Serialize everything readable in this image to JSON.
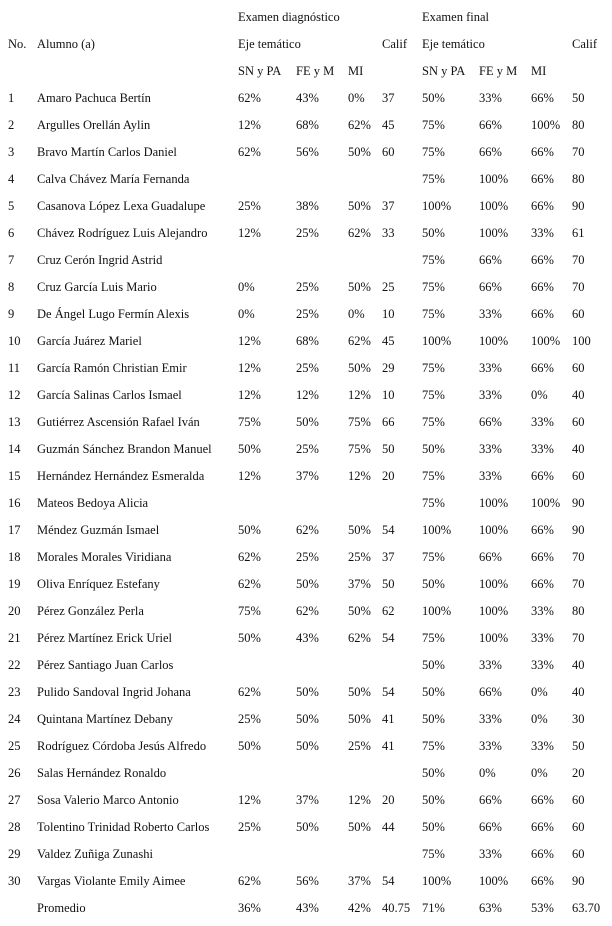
{
  "header": {
    "exam_diag": "Examen diagnóstico",
    "exam_final": "Examen final",
    "no": "No.",
    "alumno": "Alumno (a)",
    "eje_diag": "Eje temático",
    "calif_diag": "Calif",
    "eje_final": "Eje temático",
    "calif_final": "Calif",
    "sub": [
      "SN y PA",
      "FE y M",
      "MI"
    ]
  },
  "rows": [
    [
      "1",
      "Amaro Pachuca Bertín",
      "62%",
      "43%",
      "0%",
      "37",
      "50%",
      "33%",
      "66%",
      "50"
    ],
    [
      "2",
      "Argulles Orellán Aylin",
      "12%",
      "68%",
      "62%",
      "45",
      "75%",
      "66%",
      "100%",
      "80"
    ],
    [
      "3",
      "Bravo Martín Carlos Daniel",
      "62%",
      "56%",
      "50%",
      "60",
      "75%",
      "66%",
      "66%",
      "70"
    ],
    [
      "4",
      "Calva Chávez María Fernanda",
      "",
      "",
      "",
      "",
      "75%",
      "100%",
      "66%",
      "80"
    ],
    [
      "5",
      "Casanova López Lexa Guadalupe",
      "25%",
      "38%",
      "50%",
      "37",
      "100%",
      "100%",
      "66%",
      "90"
    ],
    [
      "6",
      "Chávez Rodríguez Luis Alejandro",
      "12%",
      "25%",
      "62%",
      "33",
      "50%",
      "100%",
      "33%",
      "61"
    ],
    [
      "7",
      "Cruz Cerón Ingrid Astrid",
      "",
      "",
      "",
      "",
      "75%",
      "66%",
      "66%",
      "70"
    ],
    [
      "8",
      "Cruz García Luis Mario",
      "0%",
      "25%",
      "50%",
      "25",
      "75%",
      "66%",
      "66%",
      "70"
    ],
    [
      "9",
      "De Ángel Lugo Fermín Alexis",
      "0%",
      "25%",
      "0%",
      "10",
      "75%",
      "33%",
      "66%",
      "60"
    ],
    [
      "10",
      "García Juárez Mariel",
      "12%",
      "68%",
      "62%",
      "45",
      "100%",
      "100%",
      "100%",
      "100"
    ],
    [
      "11",
      "García Ramón Christian Emir",
      "12%",
      "25%",
      "50%",
      "29",
      "75%",
      "33%",
      "66%",
      "60"
    ],
    [
      "12",
      "García Salinas Carlos Ismael",
      "12%",
      "12%",
      "12%",
      "10",
      "75%",
      "33%",
      "0%",
      "40"
    ],
    [
      "13",
      "Gutiérrez Ascensión Rafael Iván",
      "75%",
      "50%",
      "75%",
      "66",
      "75%",
      "66%",
      "33%",
      "60"
    ],
    [
      "14",
      "Guzmán Sánchez Brandon Manuel",
      "50%",
      "25%",
      "75%",
      "50",
      "50%",
      "33%",
      "33%",
      "40"
    ],
    [
      "15",
      "Hernández Hernández Esmeralda",
      "12%",
      "37%",
      "12%",
      "20",
      "75%",
      "33%",
      "66%",
      "60"
    ],
    [
      "16",
      "Mateos Bedoya Alicia",
      "",
      "",
      "",
      "",
      "75%",
      "100%",
      "100%",
      "90"
    ],
    [
      "17",
      "Méndez Guzmán Ismael",
      "50%",
      "62%",
      "50%",
      "54",
      "100%",
      "100%",
      "66%",
      "90"
    ],
    [
      "18",
      "Morales Morales Viridiana",
      "62%",
      "25%",
      "25%",
      "37",
      "75%",
      "66%",
      "66%",
      "70"
    ],
    [
      "19",
      "Oliva Enríquez Estefany",
      "62%",
      "50%",
      "37%",
      "50",
      "50%",
      "100%",
      "66%",
      "70"
    ],
    [
      "20",
      "Pérez González Perla",
      "75%",
      "62%",
      "50%",
      "62",
      "100%",
      "100%",
      "33%",
      "80"
    ],
    [
      "21",
      "Pérez Martínez Erick Uriel",
      "50%",
      "43%",
      "62%",
      "54",
      "75%",
      "100%",
      "33%",
      "70"
    ],
    [
      "22",
      "Pérez Santiago Juan Carlos",
      "",
      "",
      "",
      "",
      "50%",
      "33%",
      "33%",
      "40"
    ],
    [
      "23",
      "Pulido Sandoval Ingrid Johana",
      "62%",
      "50%",
      "50%",
      "54",
      "50%",
      "66%",
      "0%",
      "40"
    ],
    [
      "24",
      "Quintana Martínez Debany",
      "25%",
      "50%",
      "50%",
      "41",
      "50%",
      "33%",
      "0%",
      "30"
    ],
    [
      "25",
      "Rodríguez Córdoba Jesús Alfredo",
      "50%",
      "50%",
      "25%",
      "41",
      "75%",
      "33%",
      "33%",
      "50"
    ],
    [
      "26",
      "Salas Hernández Ronaldo",
      "",
      "",
      "",
      "",
      "50%",
      "0%",
      "0%",
      "20"
    ],
    [
      "27",
      "Sosa Valerio Marco Antonio",
      "12%",
      "37%",
      "12%",
      "20",
      "50%",
      "66%",
      "66%",
      "60"
    ],
    [
      "28",
      "Tolentino Trinidad Roberto Carlos",
      "25%",
      "50%",
      "50%",
      "44",
      "50%",
      "66%",
      "66%",
      "60"
    ],
    [
      "29",
      "Valdez Zuñiga Zunashi",
      "",
      "",
      "",
      "",
      "75%",
      "33%",
      "66%",
      "60"
    ],
    [
      "30",
      "Vargas Violante Emily Aimee",
      "62%",
      "56%",
      "37%",
      "54",
      "100%",
      "100%",
      "66%",
      "90"
    ],
    [
      "",
      "Promedio",
      "36%",
      "43%",
      "42%",
      "40.75",
      "71%",
      "63%",
      "53%",
      "63.70"
    ]
  ]
}
